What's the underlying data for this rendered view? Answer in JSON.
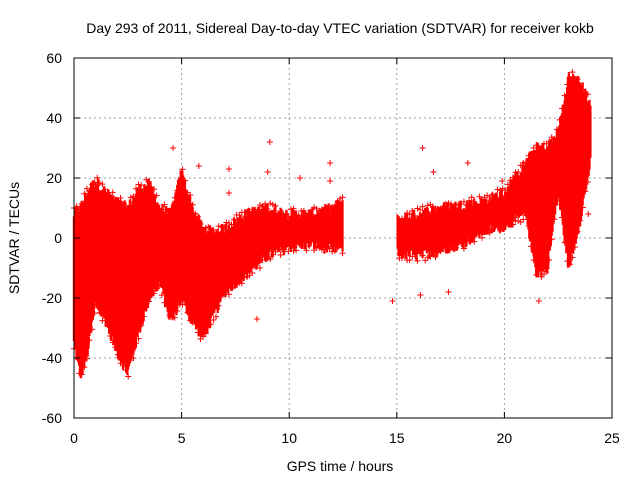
{
  "chart_data": {
    "type": "scatter",
    "title": "Day 293 of 2011, Sidereal Day-to-day VTEC variation (SDTVAR) for receiver kokb",
    "xlabel": "GPS time / hours",
    "ylabel": "SDTVAR / TECUs",
    "xlim": [
      0,
      25
    ],
    "ylim": [
      -60,
      60
    ],
    "xticks": [
      0,
      5,
      10,
      15,
      20,
      25
    ],
    "yticks": [
      -60,
      -40,
      -20,
      0,
      20,
      40,
      60
    ],
    "xtick_labels": [
      "0",
      "5",
      "10",
      "15",
      "20",
      "25"
    ],
    "ytick_labels": [
      "-60",
      "-40",
      "-20",
      "0",
      "20",
      "40",
      "60"
    ],
    "grid": true,
    "marker": "+",
    "series": [
      {
        "name": "SDTVAR",
        "color": "#ff0000",
        "envelope": [
          {
            "x": 0.0,
            "lo": -35,
            "hi": 8
          },
          {
            "x": 0.3,
            "lo": -46,
            "hi": 10
          },
          {
            "x": 0.6,
            "lo": -40,
            "hi": 15
          },
          {
            "x": 1.0,
            "lo": -22,
            "hi": 19
          },
          {
            "x": 1.5,
            "lo": -28,
            "hi": 15
          },
          {
            "x": 2.0,
            "lo": -38,
            "hi": 12
          },
          {
            "x": 2.5,
            "lo": -45,
            "hi": 10
          },
          {
            "x": 3.0,
            "lo": -32,
            "hi": 16
          },
          {
            "x": 3.5,
            "lo": -20,
            "hi": 18
          },
          {
            "x": 4.0,
            "lo": -15,
            "hi": 10
          },
          {
            "x": 4.5,
            "lo": -28,
            "hi": 8
          },
          {
            "x": 5.0,
            "lo": -20,
            "hi": 22
          },
          {
            "x": 5.5,
            "lo": -28,
            "hi": 10
          },
          {
            "x": 6.0,
            "lo": -33,
            "hi": 3
          },
          {
            "x": 6.5,
            "lo": -26,
            "hi": 2
          },
          {
            "x": 7.0,
            "lo": -18,
            "hi": 3
          },
          {
            "x": 8.0,
            "lo": -12,
            "hi": 8
          },
          {
            "x": 9.0,
            "lo": -6,
            "hi": 10
          },
          {
            "x": 10.0,
            "lo": -3,
            "hi": 8
          },
          {
            "x": 11.0,
            "lo": -2,
            "hi": 8
          },
          {
            "x": 12.0,
            "lo": -4,
            "hi": 10
          },
          {
            "x": 12.5,
            "lo": -3,
            "hi": 12
          },
          {
            "x": 15.0,
            "lo": -5,
            "hi": 6
          },
          {
            "x": 16.0,
            "lo": -6,
            "hi": 8
          },
          {
            "x": 17.0,
            "lo": -4,
            "hi": 10
          },
          {
            "x": 18.0,
            "lo": -2,
            "hi": 11
          },
          {
            "x": 19.0,
            "lo": 2,
            "hi": 12
          },
          {
            "x": 20.0,
            "lo": 4,
            "hi": 15
          },
          {
            "x": 21.0,
            "lo": 8,
            "hi": 25
          },
          {
            "x": 21.5,
            "lo": -12,
            "hi": 30
          },
          {
            "x": 22.0,
            "lo": -10,
            "hi": 30
          },
          {
            "x": 22.5,
            "lo": 15,
            "hi": 35
          },
          {
            "x": 23.0,
            "lo": -10,
            "hi": 54
          },
          {
            "x": 23.5,
            "lo": 5,
            "hi": 52
          },
          {
            "x": 24.0,
            "lo": 25,
            "hi": 45
          }
        ],
        "outliers": [
          {
            "x": 4.6,
            "y": 30
          },
          {
            "x": 5.8,
            "y": 24
          },
          {
            "x": 7.2,
            "y": 23
          },
          {
            "x": 7.2,
            "y": 15
          },
          {
            "x": 8.5,
            "y": -27
          },
          {
            "x": 9.1,
            "y": 32
          },
          {
            "x": 9.0,
            "y": 22
          },
          {
            "x": 10.5,
            "y": 20
          },
          {
            "x": 11.9,
            "y": 25
          },
          {
            "x": 11.9,
            "y": 19
          },
          {
            "x": 14.8,
            "y": -21
          },
          {
            "x": 16.2,
            "y": 30
          },
          {
            "x": 16.1,
            "y": -19
          },
          {
            "x": 16.7,
            "y": 22
          },
          {
            "x": 17.4,
            "y": -18
          },
          {
            "x": 18.3,
            "y": 25
          },
          {
            "x": 19.9,
            "y": 19
          },
          {
            "x": 21.6,
            "y": -21
          },
          {
            "x": 22.4,
            "y": 22
          },
          {
            "x": 23.9,
            "y": 8
          }
        ]
      }
    ]
  }
}
